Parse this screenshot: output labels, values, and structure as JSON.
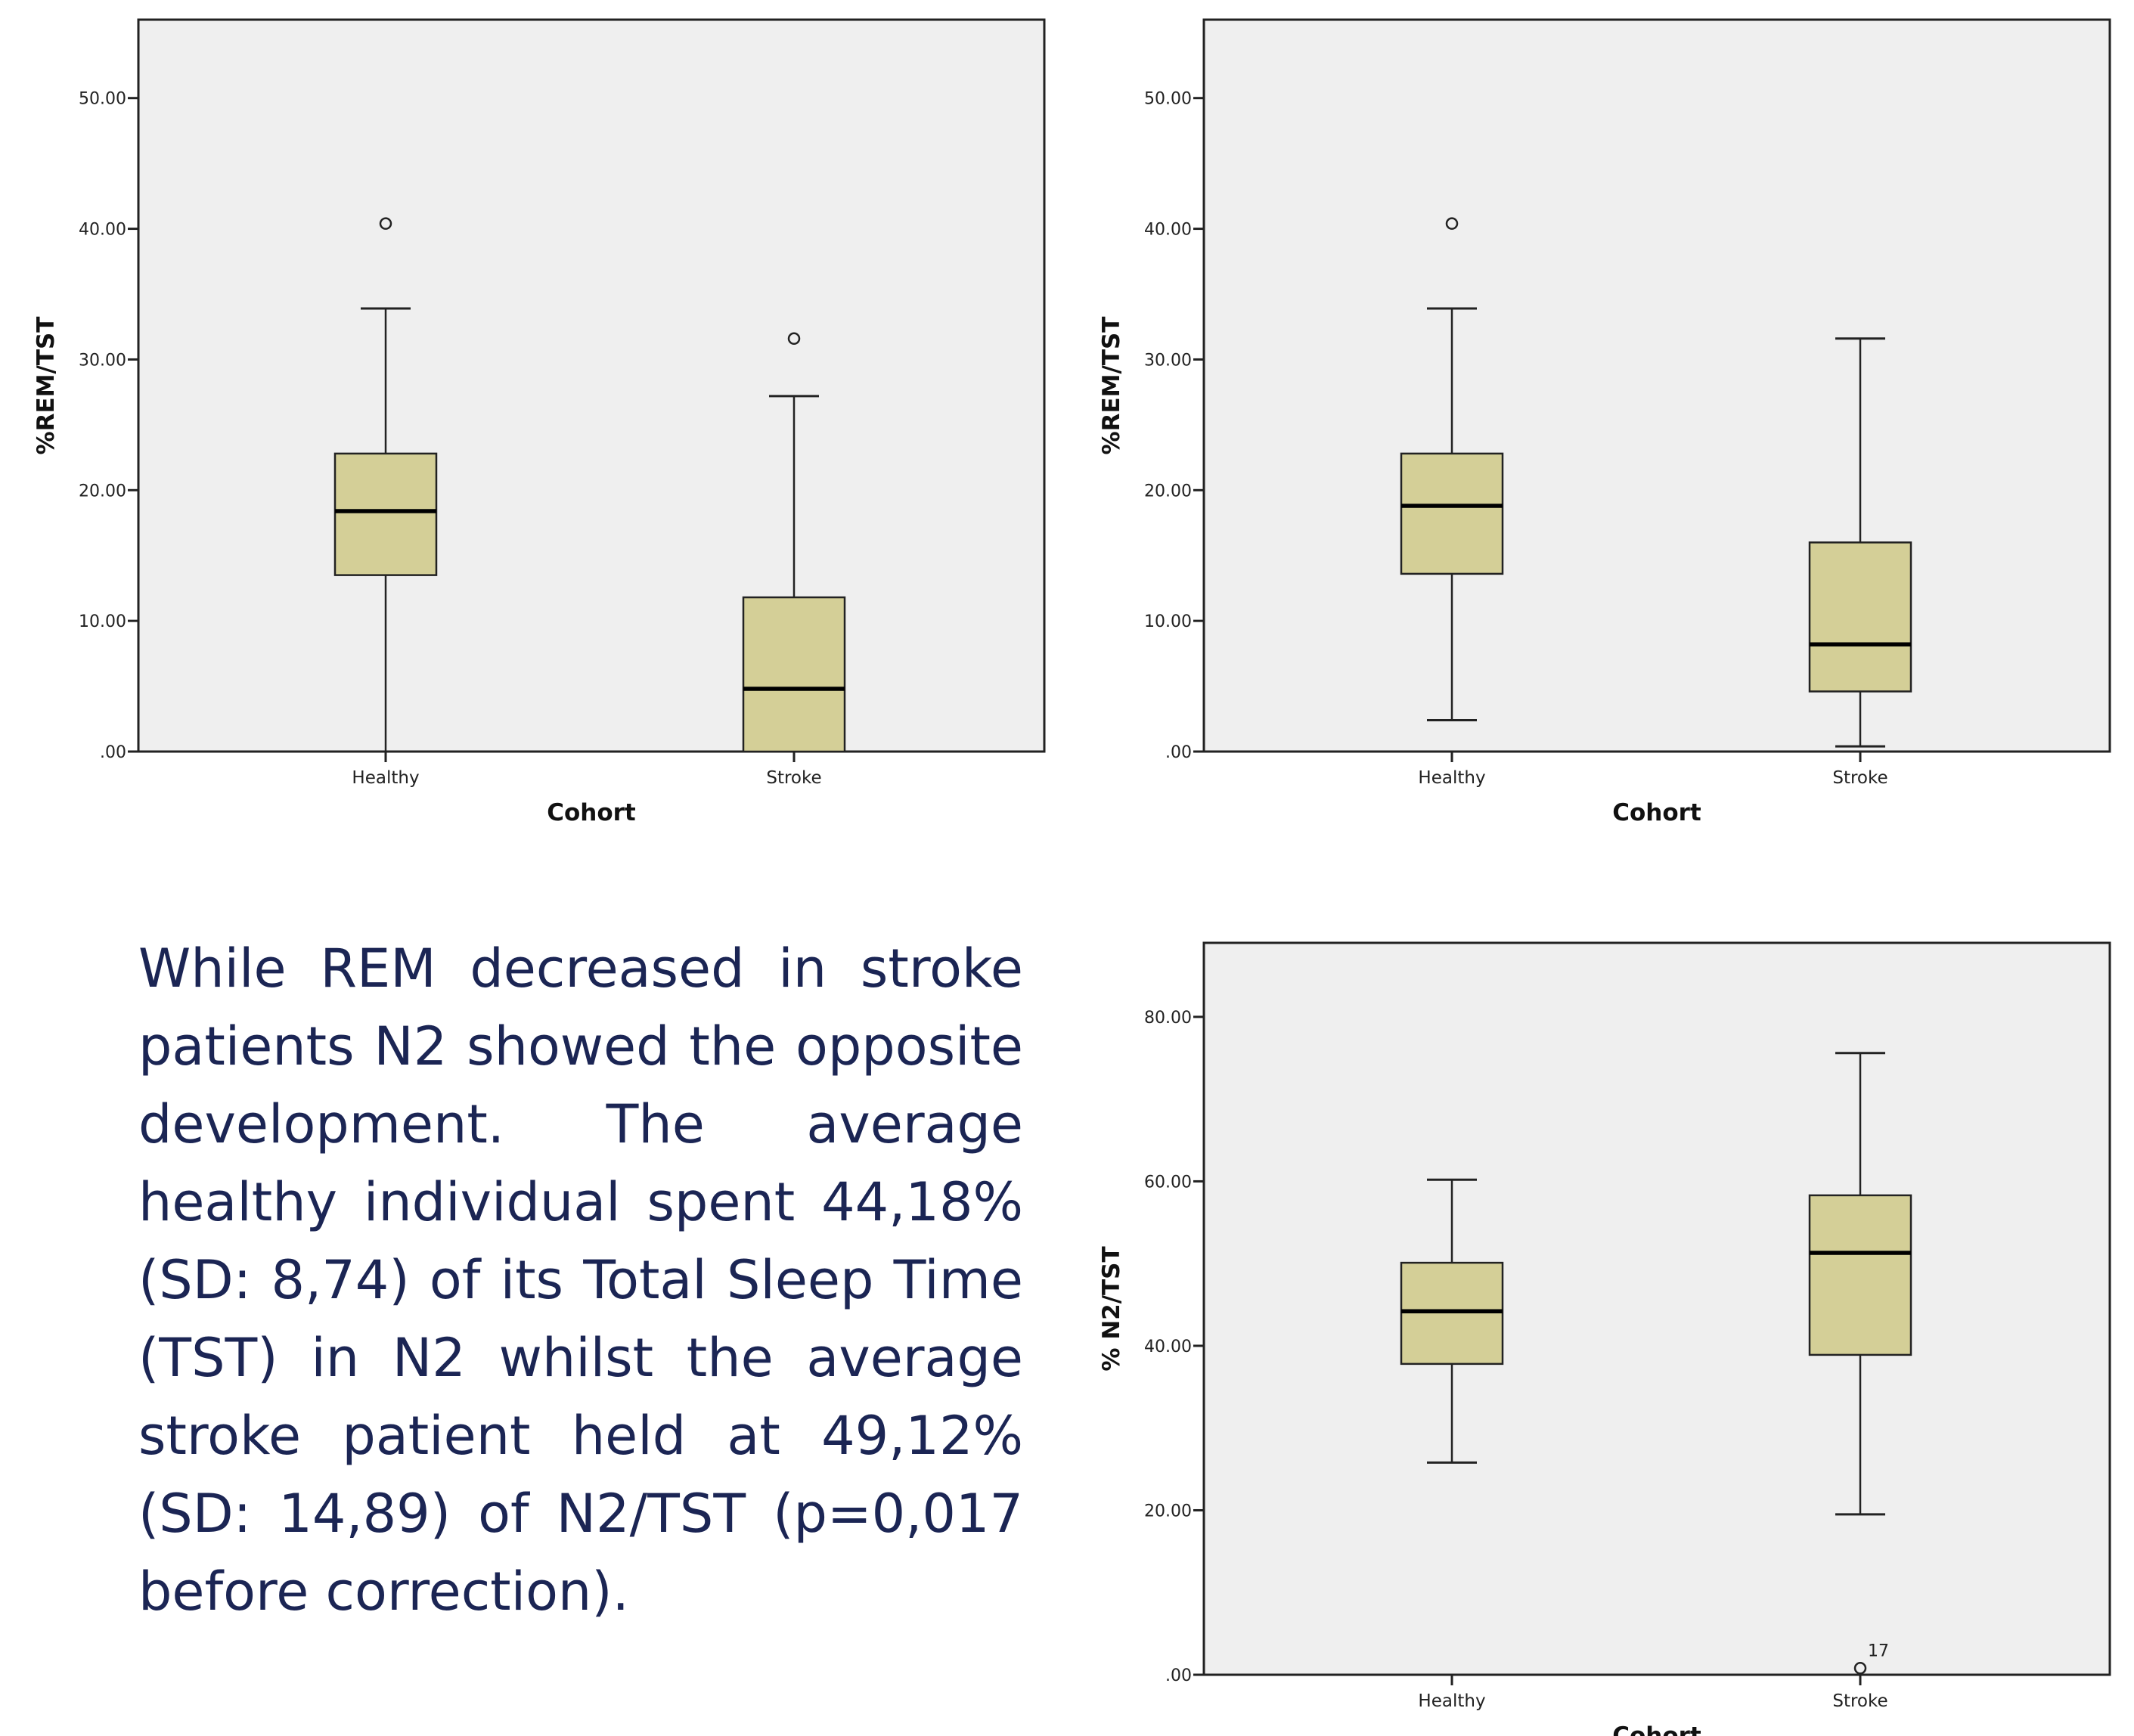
{
  "colors": {
    "box_fill": "#d4cf97",
    "plot_bg": "#efefef",
    "stroke": "#222222",
    "text": "#1b2554"
  },
  "description": "While REM decreased in stroke patients N2 showed the opposite development. The average healthy individual spent 44,18% (SD: 8,74) of its Total Sleep Time (TST) in N2 whilst the average stroke patient held at 49,12% (SD: 14,89) of N2/TST (p=0,017 before correction).",
  "chart_data": [
    {
      "type": "box",
      "xlabel": "Cohort",
      "ylabel": "%REM/TST",
      "ylim": [
        0,
        56
      ],
      "yticks": [
        0,
        10,
        20,
        30,
        40,
        50
      ],
      "ytick_labels": [
        ".00",
        "10.00",
        "20.00",
        "30.00",
        "40.00",
        "50.00"
      ],
      "categories": [
        "Healthy",
        "Stroke"
      ],
      "boxes": [
        {
          "category": "Healthy",
          "whisker_low": 0,
          "q1": 13.5,
          "median": 18.4,
          "q3": 22.8,
          "whisker_high": 33.9,
          "outliers": [
            {
              "value": 40.4
            }
          ]
        },
        {
          "category": "Stroke",
          "whisker_low": 0,
          "q1": 0,
          "median": 4.8,
          "q3": 11.8,
          "whisker_high": 27.2,
          "outliers": [
            {
              "value": 31.6
            }
          ]
        }
      ]
    },
    {
      "type": "box",
      "xlabel": "Cohort",
      "ylabel": "%REM/TST",
      "ylim": [
        0,
        56
      ],
      "yticks": [
        0,
        10,
        20,
        30,
        40,
        50
      ],
      "ytick_labels": [
        ".00",
        "10.00",
        "20.00",
        "30.00",
        "40.00",
        "50.00"
      ],
      "categories": [
        "Healthy",
        "Stroke"
      ],
      "boxes": [
        {
          "category": "Healthy",
          "whisker_low": 2.4,
          "q1": 13.6,
          "median": 18.8,
          "q3": 22.8,
          "whisker_high": 33.9,
          "outliers": [
            {
              "value": 40.4
            }
          ]
        },
        {
          "category": "Stroke",
          "whisker_low": 0.4,
          "q1": 4.6,
          "median": 8.2,
          "q3": 16.0,
          "whisker_high": 31.6,
          "outliers": []
        }
      ]
    },
    {
      "type": "box",
      "xlabel": "Cohort",
      "ylabel": "% N2/TST",
      "ylim": [
        0,
        89
      ],
      "yticks": [
        0,
        20,
        40,
        60,
        80
      ],
      "ytick_labels": [
        ".00",
        "20.00",
        "40.00",
        "60.00",
        "80.00"
      ],
      "categories": [
        "Healthy",
        "Stroke"
      ],
      "boxes": [
        {
          "category": "Healthy",
          "whisker_low": 25.8,
          "q1": 37.8,
          "median": 44.2,
          "q3": 50.1,
          "whisker_high": 60.2,
          "outliers": []
        },
        {
          "category": "Stroke",
          "whisker_low": 19.5,
          "q1": 38.9,
          "median": 51.3,
          "q3": 58.3,
          "whisker_high": 75.6,
          "outliers": [
            {
              "value": 0.8,
              "label": "17"
            }
          ]
        }
      ]
    }
  ]
}
